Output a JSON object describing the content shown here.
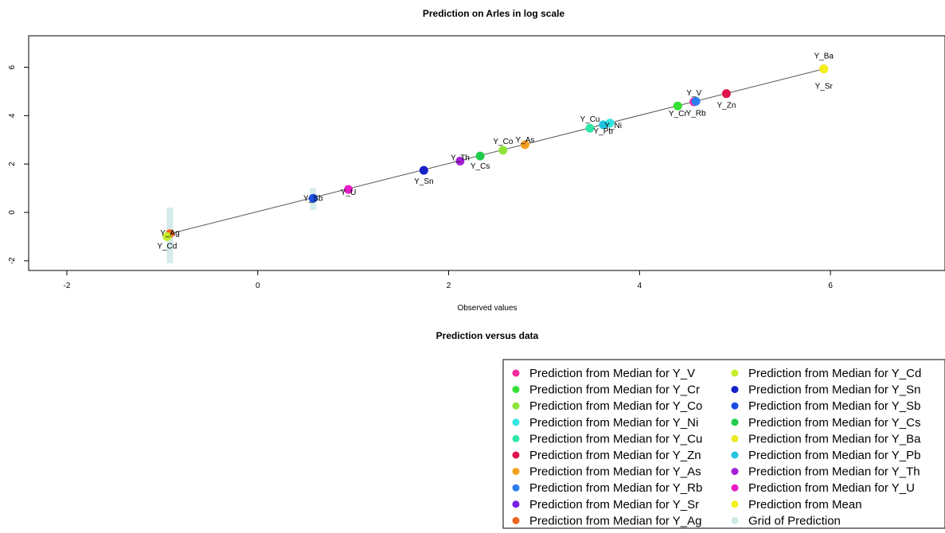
{
  "chart_data": {
    "type": "scatter",
    "title": "Prediction on Arles in log scale",
    "xlabel": "Observed values",
    "ylabel": "",
    "xlim": [
      -2.4,
      7.2
    ],
    "ylim": [
      -2.4,
      7.3
    ],
    "xticks": [
      -2,
      0,
      2,
      4,
      6
    ],
    "yticks": [
      -2,
      0,
      2,
      4,
      6
    ],
    "grid": false,
    "legend_title": "Prediction versus data",
    "legend_position": "bottom-right",
    "trend_line": {
      "x": [
        -0.92,
        5.93
      ],
      "y": [
        -0.88,
        5.93
      ],
      "color": "#555555"
    },
    "grid_of_prediction": {
      "name": "Grid of Prediction",
      "color": "#cfe8e8",
      "bands": [
        {
          "x": -0.92,
          "y_low": -2.1,
          "y_high": 0.2
        },
        {
          "x": 0.58,
          "y_low": 0.1,
          "y_high": 1.0
        }
      ]
    },
    "points": [
      {
        "series": "Prediction from Median for Y_V",
        "label": "Y_V",
        "x": 4.57,
        "y": 4.57,
        "color": "#f2289e"
      },
      {
        "series": "Prediction from Median for Y_Cr",
        "label": "Y_Cr",
        "x": 4.4,
        "y": 4.4,
        "color": "#34e034"
      },
      {
        "series": "Prediction from Median for Y_Co",
        "label": "Y_Co",
        "x": 2.57,
        "y": 2.57,
        "color": "#8fe43a"
      },
      {
        "series": "Prediction from Median for Y_Ni",
        "label": "Y_Ni",
        "x": 3.69,
        "y": 3.69,
        "color": "#34e4e4"
      },
      {
        "series": "Prediction from Median for Y_Cu",
        "label": "Y_Cu",
        "x": 3.48,
        "y": 3.48,
        "color": "#2ee6a6"
      },
      {
        "series": "Prediction from Median for Y_Zn",
        "label": "Y_Zn",
        "x": 4.91,
        "y": 4.91,
        "color": "#e0144a"
      },
      {
        "series": "Prediction from Median for Y_As",
        "label": "Y_As",
        "x": 2.8,
        "y": 2.8,
        "color": "#f4a020"
      },
      {
        "series": "Prediction from Median for Y_Rb",
        "label": "Y_Rb",
        "x": 4.59,
        "y": 4.59,
        "color": "#2a7ef0"
      },
      {
        "series": "Prediction from Median for Y_Sr",
        "label": "Y_Sr",
        "x": 5.93,
        "y": 5.93,
        "color": "#7a1fe6"
      },
      {
        "series": "Prediction from Median for Y_Ag",
        "label": "Y_Ag",
        "x": -0.92,
        "y": -0.88,
        "color": "#f0641a"
      },
      {
        "series": "Prediction from Median for Y_Cd",
        "label": "Y_Cd",
        "x": -0.95,
        "y": -1.0,
        "color": "#c4ec2a"
      },
      {
        "series": "Prediction from Median for Y_Sn",
        "label": "Y_Sn",
        "x": 1.74,
        "y": 1.74,
        "color": "#1820c8"
      },
      {
        "series": "Prediction from Median for Y_Sb",
        "label": "Y_Sb",
        "x": 0.58,
        "y": 0.58,
        "color": "#1a4ee0"
      },
      {
        "series": "Prediction from Median for Y_Cs",
        "label": "Y_Cs",
        "x": 2.33,
        "y": 2.33,
        "color": "#1ecc4a"
      },
      {
        "series": "Prediction from Median for Y_Ba",
        "label": "Y_Ba",
        "x": 5.93,
        "y": 5.93,
        "color": "#ece824"
      },
      {
        "series": "Prediction from Median for Y_Pb",
        "label": "Y_Pb",
        "x": 3.62,
        "y": 3.62,
        "color": "#22c4e0"
      },
      {
        "series": "Prediction from Median for Y_Th",
        "label": "Y_Th",
        "x": 2.12,
        "y": 2.12,
        "color": "#a420d8"
      },
      {
        "series": "Prediction from Median for Y_U",
        "label": "Y_U",
        "x": 0.95,
        "y": 0.95,
        "color": "#e81cc6"
      },
      {
        "series": "Prediction from Mean",
        "label": "",
        "x": 5.93,
        "y": 5.93,
        "color": "#f4f01c"
      }
    ],
    "legend": {
      "columns": [
        [
          {
            "label": "Prediction from Median for Y_V",
            "color": "#f2289e"
          },
          {
            "label": "Prediction from Median for Y_Cr",
            "color": "#34e034"
          },
          {
            "label": "Prediction from Median for Y_Co",
            "color": "#8fe43a"
          },
          {
            "label": "Prediction from Median for Y_Ni",
            "color": "#34e4e4"
          },
          {
            "label": "Prediction from Median for Y_Cu",
            "color": "#2ee6a6"
          },
          {
            "label": "Prediction from Median for Y_Zn",
            "color": "#e0144a"
          },
          {
            "label": "Prediction from Median for Y_As",
            "color": "#f4a020"
          },
          {
            "label": "Prediction from Median for Y_Rb",
            "color": "#2a7ef0"
          },
          {
            "label": "Prediction from Median for Y_Sr",
            "color": "#7a1fe6"
          },
          {
            "label": "Prediction from Median for Y_Ag",
            "color": "#f0641a"
          }
        ],
        [
          {
            "label": "Prediction from Median for Y_Cd",
            "color": "#c4ec2a"
          },
          {
            "label": "Prediction from Median for Y_Sn",
            "color": "#1820c8"
          },
          {
            "label": "Prediction from Median for Y_Sb",
            "color": "#1a4ee0"
          },
          {
            "label": "Prediction from Median for Y_Cs",
            "color": "#1ecc4a"
          },
          {
            "label": "Prediction from Median for Y_Ba",
            "color": "#ece824"
          },
          {
            "label": "Prediction from Median for Y_Pb",
            "color": "#22c4e0"
          },
          {
            "label": "Prediction from Median for Y_Th",
            "color": "#a420d8"
          },
          {
            "label": "Prediction from Median for Y_U",
            "color": "#e81cc6"
          },
          {
            "label": "Prediction from Mean",
            "color": "#f4f01c"
          },
          {
            "label": "Grid of Prediction",
            "color": "#cfe8e8"
          }
        ]
      ]
    }
  }
}
